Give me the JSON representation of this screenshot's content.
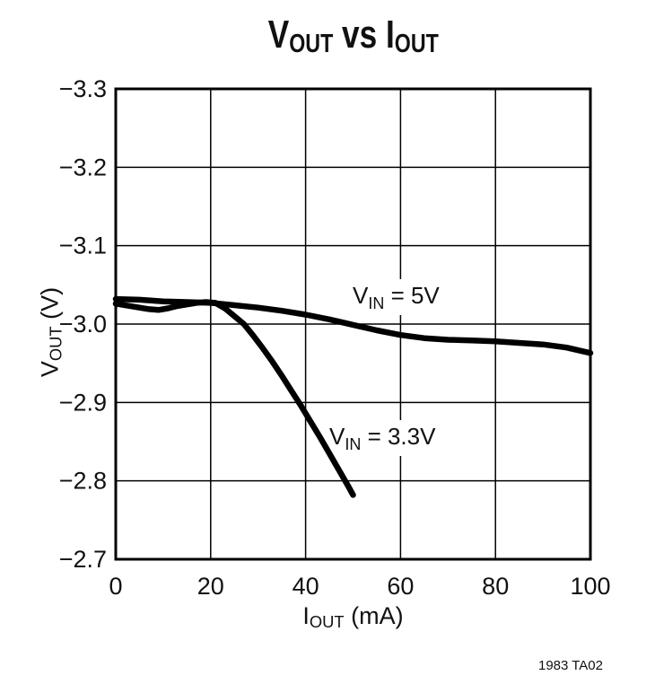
{
  "chart_data": {
    "type": "line",
    "title": {
      "part1": "V",
      "part1_sub": "OUT",
      "part2": " vs ",
      "part3": "I",
      "part3_sub": "OUT"
    },
    "xlabel": {
      "pre": "I",
      "sub": "OUT",
      "rest": " (mA)"
    },
    "ylabel": {
      "pre": "V",
      "sub": "OUT",
      "rest": " (V)"
    },
    "xlim": [
      0,
      100
    ],
    "ylim_top_to_bottom": [
      -3.3,
      -2.7
    ],
    "grid": "on",
    "x_ticks": {
      "values": [
        0,
        20,
        40,
        60,
        80,
        100
      ],
      "labels": [
        "0",
        "20",
        "40",
        "60",
        "80",
        "100"
      ]
    },
    "y_ticks": {
      "values": [
        -3.3,
        -3.2,
        -3.1,
        -3.0,
        -2.9,
        -2.8,
        -2.7
      ],
      "labels": [
        "−3.3",
        "−3.2",
        "−3.1",
        "−3.0",
        "−2.9",
        "−2.8",
        "−2.7"
      ]
    },
    "series": [
      {
        "name": "VIN = 5V",
        "label": {
          "pre": "V",
          "sub": "IN",
          "rest": " = 5V"
        },
        "points": [
          [
            0,
            -3.032
          ],
          [
            5,
            -3.031
          ],
          [
            10,
            -3.029
          ],
          [
            15,
            -3.028
          ],
          [
            20,
            -3.027
          ],
          [
            25,
            -3.024
          ],
          [
            30,
            -3.021
          ],
          [
            35,
            -3.017
          ],
          [
            40,
            -3.012
          ],
          [
            45,
            -3.006
          ],
          [
            50,
            -2.999
          ],
          [
            55,
            -2.992
          ],
          [
            60,
            -2.986
          ],
          [
            65,
            -2.982
          ],
          [
            70,
            -2.98
          ],
          [
            75,
            -2.979
          ],
          [
            80,
            -2.978
          ],
          [
            85,
            -2.976
          ],
          [
            90,
            -2.974
          ],
          [
            95,
            -2.97
          ],
          [
            100,
            -2.963
          ]
        ]
      },
      {
        "name": "VIN = 3.3V",
        "label": {
          "pre": "V",
          "sub": "IN",
          "rest": " = 3.3V"
        },
        "points": [
          [
            0,
            -3.026
          ],
          [
            3,
            -3.023
          ],
          [
            5,
            -3.021
          ],
          [
            7,
            -3.019
          ],
          [
            9,
            -3.018
          ],
          [
            11,
            -3.02
          ],
          [
            13,
            -3.023
          ],
          [
            15,
            -3.025
          ],
          [
            17,
            -3.027
          ],
          [
            19,
            -3.028
          ],
          [
            21,
            -3.027
          ],
          [
            23,
            -3.02
          ],
          [
            25,
            -3.01
          ],
          [
            27,
            -3.0
          ],
          [
            29,
            -2.985
          ],
          [
            31,
            -2.969
          ],
          [
            33,
            -2.952
          ],
          [
            35,
            -2.934
          ],
          [
            37,
            -2.915
          ],
          [
            39,
            -2.896
          ],
          [
            41,
            -2.876
          ],
          [
            43,
            -2.856
          ],
          [
            45,
            -2.835
          ],
          [
            47,
            -2.814
          ],
          [
            49,
            -2.793
          ],
          [
            50,
            -2.782
          ]
        ]
      }
    ],
    "footer": "1983 TA02",
    "colors": {
      "line": "#000000",
      "grid": "#000000",
      "frame": "#000000",
      "text": "#111111",
      "background": "#ffffff"
    }
  }
}
